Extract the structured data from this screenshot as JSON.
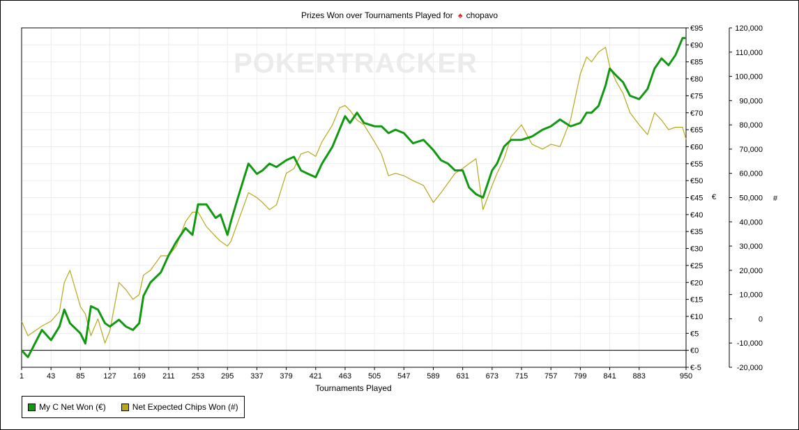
{
  "chart_data": {
    "type": "line",
    "title_prefix": "Prizes Won over Tournaments Played for",
    "title_player": "chopavo",
    "watermark": "POKERTRACKER",
    "xlabel": "Tournaments Played",
    "y_left_label": "€",
    "y_right_label": "#",
    "x_ticks": [
      1,
      43,
      85,
      127,
      169,
      211,
      253,
      295,
      337,
      379,
      421,
      463,
      505,
      547,
      589,
      631,
      673,
      715,
      757,
      799,
      841,
      883,
      950
    ],
    "xlim": [
      1,
      950
    ],
    "y_left_ticks": [
      "€95",
      "€90",
      "€85",
      "€80",
      "€75",
      "€70",
      "€65",
      "€60",
      "€55",
      "€50",
      "€45",
      "€40",
      "€35",
      "€30",
      "€25",
      "€20",
      "€15",
      "€10",
      "€5",
      "€0",
      "€-5"
    ],
    "y_left_lim": [
      -5,
      95
    ],
    "y_right_ticks": [
      "120,000",
      "110,000",
      "100,000",
      "90,000",
      "80,000",
      "70,000",
      "60,000",
      "50,000",
      "40,000",
      "30,000",
      "20,000",
      "10,000",
      "0",
      "-10,000",
      "-20,000"
    ],
    "y_right_lim": [
      -20000,
      120000
    ],
    "series": [
      {
        "name": "My C Net Won (€)",
        "color": "#109910",
        "axis": "left",
        "x": [
          1,
          10,
          20,
          30,
          43,
          55,
          62,
          70,
          85,
          92,
          100,
          110,
          120,
          127,
          140,
          150,
          160,
          169,
          175,
          185,
          200,
          211,
          222,
          235,
          245,
          253,
          265,
          278,
          285,
          295,
          300,
          310,
          325,
          337,
          345,
          355,
          365,
          379,
          390,
          400,
          410,
          421,
          430,
          445,
          455,
          463,
          470,
          480,
          490,
          505,
          515,
          525,
          535,
          547,
          560,
          575,
          589,
          600,
          610,
          620,
          631,
          640,
          650,
          660,
          673,
          680,
          690,
          700,
          715,
          730,
          745,
          757,
          770,
          785,
          799,
          808,
          815,
          825,
          835,
          841,
          850,
          860,
          870,
          883,
          895,
          905,
          915,
          925,
          935,
          945,
          950
        ],
        "y": [
          0,
          -2,
          2,
          6,
          3,
          7,
          12,
          8,
          5,
          2,
          13,
          12,
          8,
          7,
          9,
          7,
          6,
          8,
          16,
          20,
          23,
          28,
          32,
          36,
          34,
          43,
          43,
          39,
          40,
          34,
          38,
          45,
          55,
          52,
          53,
          55,
          54,
          56,
          57,
          53,
          52,
          51,
          55,
          60,
          65,
          69,
          67,
          70,
          67,
          66,
          66,
          64,
          65,
          64,
          61,
          62,
          59,
          56,
          55,
          53,
          53,
          48,
          46,
          45,
          53,
          55,
          60,
          62,
          62,
          63,
          65,
          66,
          68,
          66,
          67,
          70,
          70,
          72,
          78,
          83,
          81,
          79,
          75,
          74,
          77,
          83,
          86,
          84,
          87,
          92,
          92
        ]
      },
      {
        "name": "Net Expected Chips Won (#)",
        "color": "#b5a81b",
        "axis": "right",
        "x": [
          1,
          10,
          20,
          30,
          43,
          55,
          62,
          70,
          85,
          92,
          100,
          110,
          120,
          127,
          140,
          150,
          160,
          169,
          175,
          185,
          200,
          211,
          222,
          235,
          245,
          253,
          265,
          278,
          285,
          295,
          300,
          310,
          325,
          337,
          345,
          355,
          365,
          379,
          390,
          400,
          410,
          421,
          430,
          445,
          455,
          463,
          470,
          480,
          490,
          505,
          515,
          525,
          535,
          547,
          560,
          575,
          589,
          600,
          610,
          620,
          631,
          640,
          650,
          660,
          673,
          680,
          690,
          700,
          715,
          730,
          745,
          757,
          770,
          785,
          799,
          808,
          815,
          825,
          835,
          841,
          850,
          860,
          870,
          883,
          895,
          905,
          915,
          925,
          935,
          945,
          950
        ],
        "y": [
          -1000,
          -7000,
          -5000,
          -3000,
          -1000,
          3000,
          15000,
          20000,
          5000,
          2000,
          -7000,
          0,
          -10000,
          -5000,
          15000,
          12000,
          8000,
          10000,
          18000,
          20000,
          26000,
          26000,
          30000,
          40000,
          44000,
          44000,
          38000,
          34000,
          32000,
          30000,
          32000,
          40000,
          52000,
          50000,
          48000,
          45000,
          47000,
          60000,
          62000,
          68000,
          69000,
          67000,
          73000,
          80000,
          87000,
          88000,
          86000,
          82000,
          80000,
          73000,
          68000,
          59000,
          60000,
          59000,
          57000,
          55000,
          48000,
          52000,
          56000,
          60000,
          62000,
          64000,
          66000,
          45000,
          55000,
          60000,
          66000,
          75000,
          80000,
          72000,
          70000,
          72000,
          71000,
          82000,
          101000,
          108000,
          106000,
          110000,
          112000,
          104000,
          98000,
          93000,
          85000,
          80000,
          76000,
          85000,
          82000,
          78000,
          79000,
          79000,
          74000
        ]
      }
    ]
  }
}
